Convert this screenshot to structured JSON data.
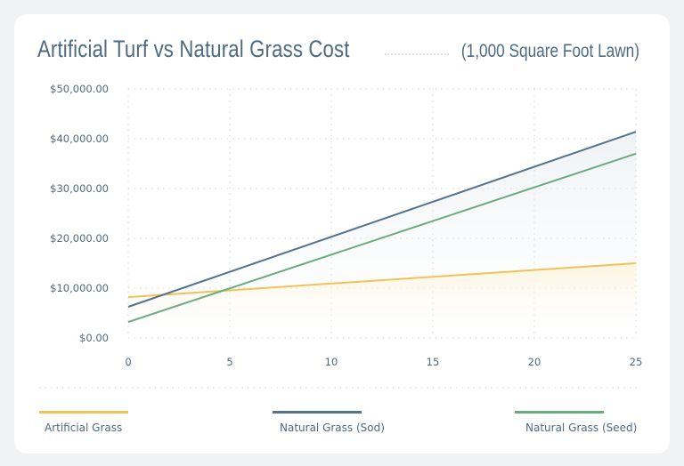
{
  "chart_data": {
    "type": "line",
    "title": "Artificial Turf vs Natural Grass Cost",
    "subtitle": "(1,000 Square Foot Lawn)",
    "xlabel": "",
    "ylabel": "",
    "xlim": [
      0,
      25
    ],
    "ylim": [
      0,
      50000
    ],
    "x_ticks": [
      "0",
      "5",
      "10",
      "15",
      "20",
      "25"
    ],
    "y_ticks": [
      "$0.00",
      "$10,000.00",
      "$20,000.00",
      "$30,000.00",
      "$40,000.00",
      "$50,000.00"
    ],
    "grid": true,
    "legend_position": "bottom",
    "series": [
      {
        "name": "Artificial Grass",
        "color": "#f0c35a",
        "x": [
          0,
          25
        ],
        "y": [
          8200,
          15000
        ]
      },
      {
        "name": "Natural Grass (Sod)",
        "color": "#54738e",
        "x": [
          0,
          25
        ],
        "y": [
          6250,
          41400
        ]
      },
      {
        "name": "Natural Grass (Seed)",
        "color": "#6aab7f",
        "x": [
          0,
          25
        ],
        "y": [
          3200,
          37000
        ]
      }
    ]
  }
}
